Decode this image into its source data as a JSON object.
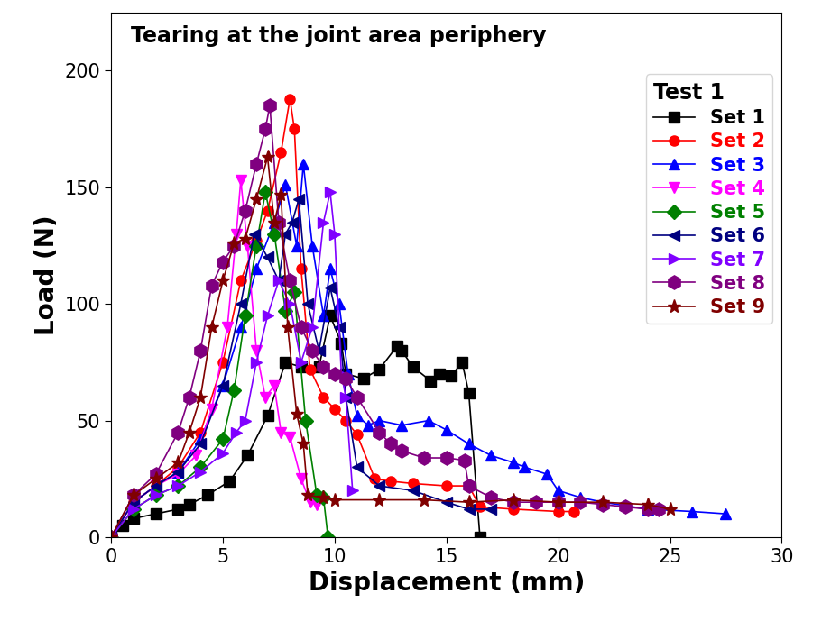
{
  "chart_data": {
    "type": "line",
    "title": "Tearing at the joint area periphery",
    "x_label": "Displacement (mm)",
    "y_label": "Load (N)",
    "legend_title": "Test 1",
    "legend": "upper right",
    "xlim": [
      0,
      30
    ],
    "xticks": [
      0,
      5,
      10,
      15,
      20,
      25,
      30
    ],
    "ylim": [
      0,
      225
    ],
    "yticks": [
      0,
      50,
      100,
      150,
      200
    ],
    "series": [
      {
        "name": "Set 1",
        "color": "#000000",
        "marker": "square",
        "x": [
          0,
          0.5,
          1,
          2,
          3,
          3.5,
          4.3,
          5.3,
          6.1,
          7,
          7.8,
          8.5,
          9.3,
          9.8,
          10.3,
          10.5,
          11.3,
          12,
          12.8,
          13,
          13.5,
          14.3,
          14.7,
          15.2,
          15.7,
          16,
          16.5
        ],
        "values": [
          0,
          5,
          8,
          10,
          12,
          14,
          18,
          24,
          35,
          52,
          75,
          73,
          73,
          95,
          83,
          70,
          68,
          72,
          82,
          80,
          73,
          67,
          70,
          69,
          75,
          62,
          0
        ]
      },
      {
        "name": "Set 2",
        "color": "#ff0000",
        "marker": "circle",
        "x": [
          0,
          1,
          2,
          3,
          4,
          5,
          5.8,
          6.5,
          7,
          7.6,
          8.0,
          8.2,
          8.5,
          8.9,
          9.5,
          10,
          10.5,
          11,
          11.8,
          12.5,
          13.5,
          15,
          16,
          16.5,
          18,
          20,
          20.7
        ],
        "values": [
          0,
          15,
          22,
          30,
          45,
          75,
          110,
          127,
          140,
          165,
          188,
          175,
          115,
          72,
          60,
          55,
          50,
          44,
          25,
          24,
          23,
          22,
          22,
          13,
          12,
          11,
          11
        ]
      },
      {
        "name": "Set 3",
        "color": "#0000ff",
        "marker": "triangle_up",
        "x": [
          0,
          1,
          2,
          3,
          4,
          5,
          5.8,
          6.5,
          7.3,
          7.8,
          8.3,
          8.6,
          9,
          9.5,
          9.8,
          10.2,
          10.6,
          11,
          11.5,
          12,
          13,
          14.2,
          15,
          16,
          17,
          18,
          18.5,
          19.5,
          20,
          21,
          22,
          24,
          26,
          27.5
        ],
        "values": [
          0,
          15,
          22,
          28,
          42,
          65,
          90,
          115,
          135,
          151,
          125,
          160,
          125,
          95,
          115,
          100,
          70,
          52,
          48,
          50,
          48,
          50,
          46,
          40,
          35,
          32,
          30,
          27,
          20,
          17,
          15,
          12,
          11,
          10
        ]
      },
      {
        "name": "Set 4",
        "color": "#ff00ff",
        "marker": "triangle_down",
        "x": [
          0,
          1,
          2,
          3,
          3.8,
          4.5,
          5.2,
          5.6,
          5.8,
          6.1,
          6.5,
          6.9,
          7.3,
          7.6,
          8,
          8.5,
          8.9,
          9.2
        ],
        "values": [
          0,
          15,
          22,
          27,
          35,
          55,
          90,
          130,
          153,
          125,
          80,
          60,
          65,
          45,
          43,
          25,
          15,
          14
        ]
      },
      {
        "name": "Set 5",
        "color": "#008000",
        "marker": "diamond",
        "x": [
          0,
          1,
          2,
          3,
          4,
          5,
          5.5,
          6,
          6.5,
          6.9,
          7.3,
          7.8,
          8.2,
          8.7,
          9.2,
          9.5,
          9.7
        ],
        "values": [
          0,
          12,
          18,
          22,
          30,
          42,
          63,
          95,
          125,
          148,
          130,
          97,
          105,
          50,
          18,
          17,
          0
        ]
      },
      {
        "name": "Set 6",
        "color": "#000080",
        "marker": "triangle_left",
        "x": [
          0,
          1,
          2,
          3,
          4,
          5,
          5.8,
          6.4,
          7,
          7.5,
          7.8,
          8.1,
          8.4,
          8.8,
          9.3,
          9.8,
          10.2,
          10.5,
          11,
          12,
          13.5,
          15,
          16,
          17
        ],
        "values": [
          0,
          15,
          22,
          28,
          40,
          65,
          100,
          130,
          120,
          110,
          130,
          135,
          145,
          100,
          80,
          107,
          90,
          60,
          30,
          22,
          20,
          15,
          12,
          12
        ]
      },
      {
        "name": "Set 7",
        "color": "#8000ff",
        "marker": "triangle_right",
        "x": [
          0,
          1,
          2,
          3,
          4,
          5,
          5.6,
          6,
          6.5,
          7,
          7.5,
          8,
          8.5,
          9,
          9.5,
          9.8,
          10,
          10.3,
          10.5,
          10.8
        ],
        "values": [
          0,
          12,
          18,
          22,
          28,
          36,
          45,
          50,
          75,
          95,
          110,
          100,
          75,
          90,
          135,
          148,
          130,
          70,
          60,
          20
        ]
      },
      {
        "name": "Set 8",
        "color": "#800080",
        "marker": "hexagon",
        "x": [
          0,
          1,
          2,
          3,
          3.5,
          4,
          4.5,
          5,
          5.5,
          6,
          6.5,
          6.9,
          7.1,
          7.5,
          8,
          8.5,
          9,
          9.5,
          10,
          10.5,
          11,
          12,
          12.5,
          13,
          14,
          15,
          15.8,
          16,
          17,
          18,
          19,
          20,
          21,
          22,
          23,
          24,
          24.5
        ],
        "values": [
          0,
          18,
          27,
          45,
          60,
          80,
          108,
          118,
          125,
          140,
          160,
          175,
          185,
          135,
          110,
          90,
          80,
          73,
          70,
          68,
          60,
          45,
          40,
          37,
          34,
          34,
          33,
          22,
          17,
          15,
          15,
          15,
          15,
          14,
          13,
          12,
          12
        ]
      },
      {
        "name": "Set 9",
        "color": "#800000",
        "marker": "star",
        "x": [
          0,
          1,
          2,
          3,
          3.5,
          4,
          4.5,
          5,
          5.5,
          6,
          6.5,
          7,
          7.3,
          7.6,
          7.9,
          8.3,
          8.6,
          8.8,
          9.5,
          10,
          12,
          14,
          16,
          18,
          20,
          22,
          24,
          25
        ],
        "values": [
          0,
          18,
          25,
          32,
          45,
          60,
          90,
          110,
          126,
          128,
          145,
          163,
          135,
          147,
          90,
          53,
          40,
          18,
          17,
          16,
          16,
          16,
          15,
          16,
          15,
          15,
          14,
          12
        ]
      }
    ]
  }
}
